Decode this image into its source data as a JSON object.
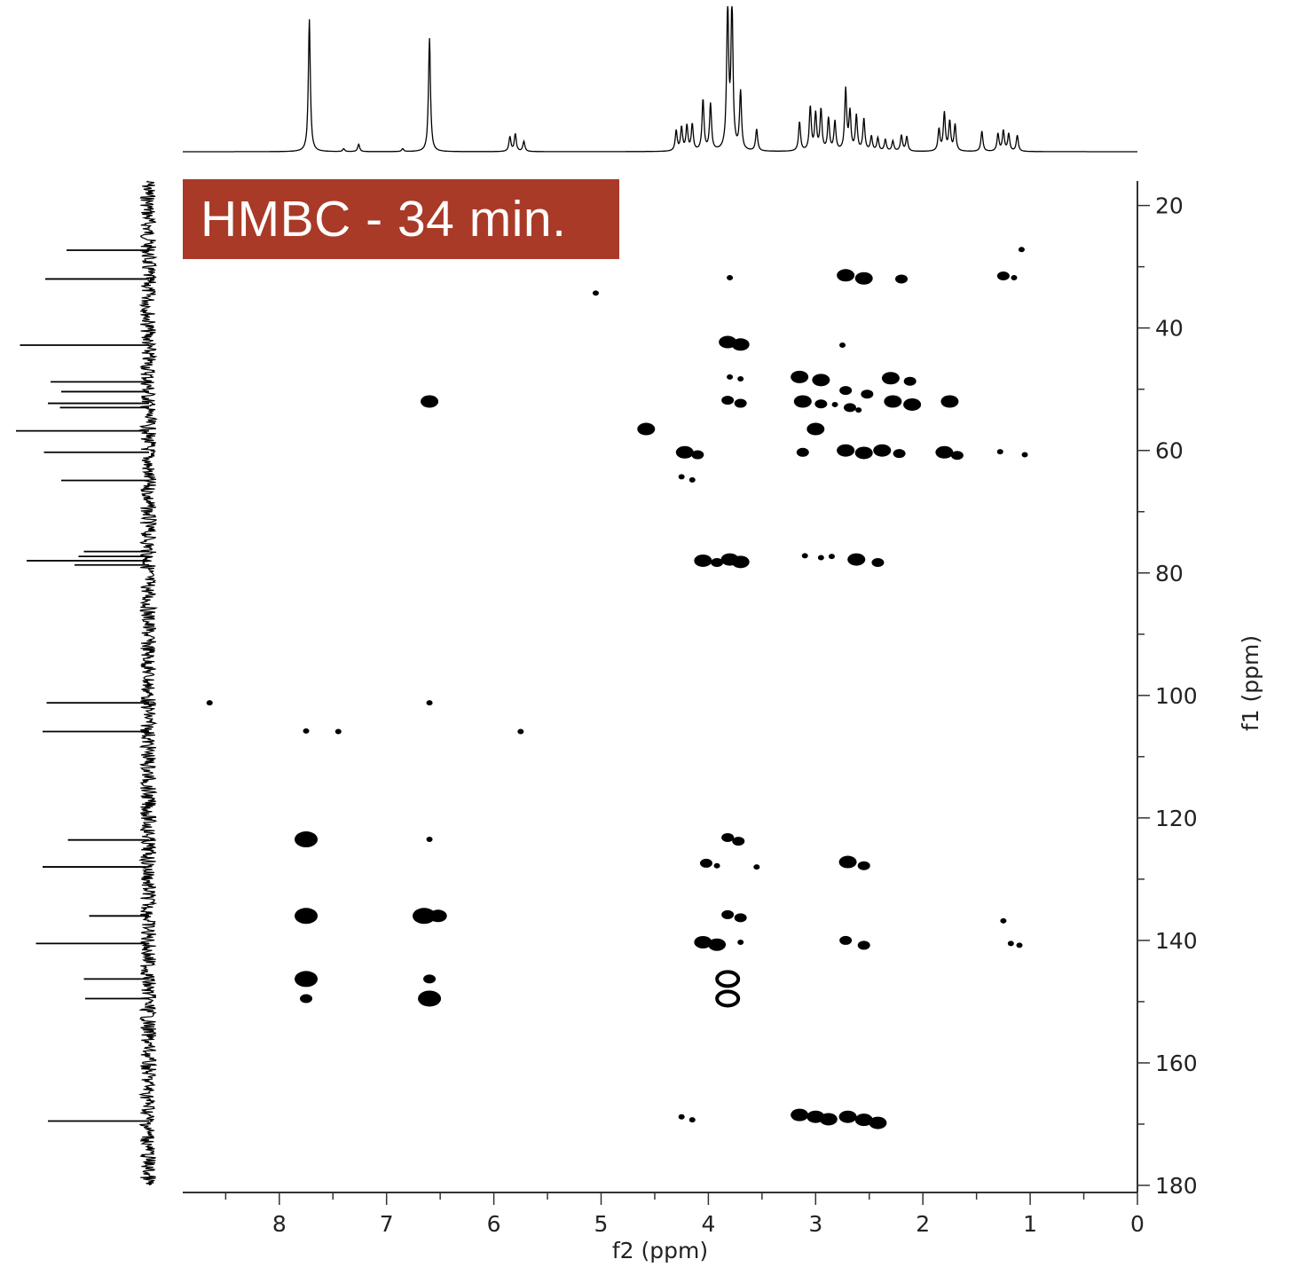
{
  "badge": {
    "label": "HMBC - 34 min.",
    "color": "#a93a27"
  },
  "chart_data": {
    "type": "scatter",
    "subtype": "2D NMR HMBC contour map with 1D projections",
    "title": "HMBC - 34 min.",
    "xlabel": "f2 (ppm)",
    "ylabel": "f1 (ppm)",
    "x_reversed": true,
    "y_reversed": true,
    "xlim": [
      8.9,
      0.0
    ],
    "ylim": [
      16.0,
      180.0
    ],
    "x_ticks": [
      8,
      7,
      6,
      5,
      4,
      3,
      2,
      1,
      0
    ],
    "y_ticks": [
      20,
      40,
      60,
      80,
      100,
      120,
      140,
      160,
      180
    ],
    "colors": {
      "contour": "#000000",
      "axis": "#333333"
    },
    "cross_peaks": [
      {
        "x": 1.08,
        "y": 27.2,
        "s": 0
      },
      {
        "x": 1.25,
        "y": 31.5,
        "s": 1
      },
      {
        "x": 1.15,
        "y": 31.8,
        "s": 0
      },
      {
        "x": 2.72,
        "y": 31.4,
        "s": 2
      },
      {
        "x": 2.55,
        "y": 31.9,
        "s": 2
      },
      {
        "x": 2.2,
        "y": 32.0,
        "s": 1
      },
      {
        "x": 3.8,
        "y": 31.8,
        "s": 0
      },
      {
        "x": 5.05,
        "y": 34.3,
        "s": 0
      },
      {
        "x": 3.82,
        "y": 42.3,
        "s": 2
      },
      {
        "x": 3.7,
        "y": 42.7,
        "s": 2
      },
      {
        "x": 2.75,
        "y": 42.8,
        "s": 0
      },
      {
        "x": 3.15,
        "y": 48.0,
        "s": 2
      },
      {
        "x": 2.95,
        "y": 48.5,
        "s": 2
      },
      {
        "x": 2.3,
        "y": 48.2,
        "s": 2
      },
      {
        "x": 2.12,
        "y": 48.7,
        "s": 1
      },
      {
        "x": 3.8,
        "y": 48.0,
        "s": 0
      },
      {
        "x": 3.7,
        "y": 48.3,
        "s": 0
      },
      {
        "x": 2.72,
        "y": 50.2,
        "s": 1
      },
      {
        "x": 2.52,
        "y": 50.8,
        "s": 1
      },
      {
        "x": 6.6,
        "y": 52.0,
        "s": 2
      },
      {
        "x": 3.82,
        "y": 51.8,
        "s": 1
      },
      {
        "x": 3.7,
        "y": 52.3,
        "s": 1
      },
      {
        "x": 3.12,
        "y": 52.0,
        "s": 2
      },
      {
        "x": 2.95,
        "y": 52.4,
        "s": 1
      },
      {
        "x": 2.82,
        "y": 52.5,
        "s": 0
      },
      {
        "x": 2.68,
        "y": 53.0,
        "s": 1
      },
      {
        "x": 2.28,
        "y": 52.0,
        "s": 2
      },
      {
        "x": 2.1,
        "y": 52.5,
        "s": 2
      },
      {
        "x": 1.75,
        "y": 52.0,
        "s": 2
      },
      {
        "x": 2.6,
        "y": 53.4,
        "s": 0
      },
      {
        "x": 4.58,
        "y": 56.5,
        "s": 2
      },
      {
        "x": 3.0,
        "y": 56.5,
        "s": 2
      },
      {
        "x": 4.22,
        "y": 60.3,
        "s": 2
      },
      {
        "x": 4.1,
        "y": 60.7,
        "s": 1
      },
      {
        "x": 3.12,
        "y": 60.3,
        "s": 1
      },
      {
        "x": 2.72,
        "y": 60.0,
        "s": 2
      },
      {
        "x": 2.55,
        "y": 60.4,
        "s": 2
      },
      {
        "x": 2.38,
        "y": 60.0,
        "s": 2
      },
      {
        "x": 2.22,
        "y": 60.5,
        "s": 1
      },
      {
        "x": 1.8,
        "y": 60.3,
        "s": 2
      },
      {
        "x": 1.68,
        "y": 60.8,
        "s": 1
      },
      {
        "x": 1.28,
        "y": 60.2,
        "s": 0
      },
      {
        "x": 1.05,
        "y": 60.7,
        "s": 0
      },
      {
        "x": 4.25,
        "y": 64.3,
        "s": 0
      },
      {
        "x": 4.15,
        "y": 64.8,
        "s": 0
      },
      {
        "x": 4.05,
        "y": 78.0,
        "s": 2
      },
      {
        "x": 3.92,
        "y": 78.3,
        "s": 1
      },
      {
        "x": 3.8,
        "y": 77.8,
        "s": 2
      },
      {
        "x": 3.7,
        "y": 78.2,
        "s": 2
      },
      {
        "x": 3.1,
        "y": 77.2,
        "s": 0
      },
      {
        "x": 2.95,
        "y": 77.5,
        "s": 0
      },
      {
        "x": 2.85,
        "y": 77.3,
        "s": 0
      },
      {
        "x": 2.62,
        "y": 77.8,
        "s": 2
      },
      {
        "x": 2.42,
        "y": 78.3,
        "s": 1
      },
      {
        "x": 8.65,
        "y": 101.2,
        "s": 0
      },
      {
        "x": 6.6,
        "y": 101.2,
        "s": 0
      },
      {
        "x": 7.75,
        "y": 105.8,
        "s": 0
      },
      {
        "x": 7.45,
        "y": 105.9,
        "s": 0
      },
      {
        "x": 5.75,
        "y": 105.9,
        "s": 0
      },
      {
        "x": 7.75,
        "y": 123.5,
        "s": 3
      },
      {
        "x": 6.6,
        "y": 123.5,
        "s": 0
      },
      {
        "x": 3.82,
        "y": 123.2,
        "s": 1
      },
      {
        "x": 3.72,
        "y": 123.8,
        "s": 1
      },
      {
        "x": 4.02,
        "y": 127.4,
        "s": 1
      },
      {
        "x": 3.92,
        "y": 127.8,
        "s": 0
      },
      {
        "x": 3.55,
        "y": 128.0,
        "s": 0
      },
      {
        "x": 2.7,
        "y": 127.2,
        "s": 2
      },
      {
        "x": 2.55,
        "y": 127.8,
        "s": 1
      },
      {
        "x": 7.75,
        "y": 136.0,
        "s": 3
      },
      {
        "x": 6.65,
        "y": 136.0,
        "s": 3
      },
      {
        "x": 6.52,
        "y": 136.0,
        "s": 2
      },
      {
        "x": 3.82,
        "y": 135.8,
        "s": 1
      },
      {
        "x": 3.7,
        "y": 136.3,
        "s": 1
      },
      {
        "x": 4.05,
        "y": 140.3,
        "s": 2
      },
      {
        "x": 3.92,
        "y": 140.7,
        "s": 2
      },
      {
        "x": 3.7,
        "y": 140.3,
        "s": 0
      },
      {
        "x": 2.72,
        "y": 140.0,
        "s": 1
      },
      {
        "x": 2.55,
        "y": 140.8,
        "s": 1
      },
      {
        "x": 1.25,
        "y": 136.8,
        "s": 0
      },
      {
        "x": 1.18,
        "y": 140.5,
        "s": 0
      },
      {
        "x": 1.1,
        "y": 140.8,
        "s": 0
      },
      {
        "x": 7.75,
        "y": 146.3,
        "s": 3
      },
      {
        "x": 6.6,
        "y": 146.3,
        "s": 1
      },
      {
        "x": 7.75,
        "y": 149.5,
        "s": 1
      },
      {
        "x": 6.6,
        "y": 149.5,
        "s": 3
      },
      {
        "x": 3.82,
        "y": 146.3,
        "s": 4
      },
      {
        "x": 3.82,
        "y": 149.5,
        "s": 4
      },
      {
        "x": 4.25,
        "y": 168.8,
        "s": 0
      },
      {
        "x": 4.15,
        "y": 169.3,
        "s": 0
      },
      {
        "x": 3.15,
        "y": 168.5,
        "s": 2
      },
      {
        "x": 3.0,
        "y": 168.8,
        "s": 2
      },
      {
        "x": 2.88,
        "y": 169.2,
        "s": 2
      },
      {
        "x": 2.7,
        "y": 168.8,
        "s": 2
      },
      {
        "x": 2.55,
        "y": 169.3,
        "s": 2
      },
      {
        "x": 2.42,
        "y": 169.8,
        "s": 2
      }
    ],
    "top_projection_peaks": [
      {
        "x": 7.72,
        "h": 0.91
      },
      {
        "x": 7.4,
        "h": 0.02
      },
      {
        "x": 7.26,
        "h": 0.05
      },
      {
        "x": 6.85,
        "h": 0.02
      },
      {
        "x": 6.6,
        "h": 0.78
      },
      {
        "x": 5.85,
        "h": 0.1
      },
      {
        "x": 5.8,
        "h": 0.12
      },
      {
        "x": 5.72,
        "h": 0.07
      },
      {
        "x": 4.3,
        "h": 0.14
      },
      {
        "x": 4.25,
        "h": 0.16
      },
      {
        "x": 4.2,
        "h": 0.17
      },
      {
        "x": 4.15,
        "h": 0.18
      },
      {
        "x": 4.05,
        "h": 0.35
      },
      {
        "x": 3.98,
        "h": 0.32
      },
      {
        "x": 3.82,
        "h": 1.0
      },
      {
        "x": 3.78,
        "h": 1.0
      },
      {
        "x": 3.7,
        "h": 0.4
      },
      {
        "x": 3.55,
        "h": 0.15
      },
      {
        "x": 3.15,
        "h": 0.2
      },
      {
        "x": 3.05,
        "h": 0.3
      },
      {
        "x": 3.0,
        "h": 0.25
      },
      {
        "x": 2.95,
        "h": 0.28
      },
      {
        "x": 2.88,
        "h": 0.22
      },
      {
        "x": 2.82,
        "h": 0.2
      },
      {
        "x": 2.72,
        "h": 0.42
      },
      {
        "x": 2.68,
        "h": 0.26
      },
      {
        "x": 2.62,
        "h": 0.24
      },
      {
        "x": 2.55,
        "h": 0.22
      },
      {
        "x": 2.48,
        "h": 0.1
      },
      {
        "x": 2.42,
        "h": 0.09
      },
      {
        "x": 2.35,
        "h": 0.08
      },
      {
        "x": 2.28,
        "h": 0.07
      },
      {
        "x": 2.2,
        "h": 0.11
      },
      {
        "x": 2.15,
        "h": 0.1
      },
      {
        "x": 1.85,
        "h": 0.15
      },
      {
        "x": 1.8,
        "h": 0.26
      },
      {
        "x": 1.75,
        "h": 0.2
      },
      {
        "x": 1.7,
        "h": 0.18
      },
      {
        "x": 1.45,
        "h": 0.14
      },
      {
        "x": 1.3,
        "h": 0.12
      },
      {
        "x": 1.25,
        "h": 0.14
      },
      {
        "x": 1.2,
        "h": 0.12
      },
      {
        "x": 1.12,
        "h": 0.11
      }
    ],
    "left_projection_peaks": [
      {
        "y": 27.3,
        "h": 0.62
      },
      {
        "y": 32.0,
        "h": 0.78
      },
      {
        "y": 42.8,
        "h": 0.97
      },
      {
        "y": 48.8,
        "h": 0.74
      },
      {
        "y": 50.4,
        "h": 0.66
      },
      {
        "y": 52.3,
        "h": 0.76
      },
      {
        "y": 53.0,
        "h": 0.67
      },
      {
        "y": 56.8,
        "h": 1.0
      },
      {
        "y": 60.3,
        "h": 0.79
      },
      {
        "y": 64.9,
        "h": 0.66
      },
      {
        "y": 76.5,
        "h": 0.49
      },
      {
        "y": 77.3,
        "h": 0.53
      },
      {
        "y": 78.0,
        "h": 0.92
      },
      {
        "y": 78.7,
        "h": 0.56
      },
      {
        "y": 101.2,
        "h": 0.77
      },
      {
        "y": 105.9,
        "h": 0.8
      },
      {
        "y": 123.6,
        "h": 0.61
      },
      {
        "y": 128.0,
        "h": 0.8
      },
      {
        "y": 136.0,
        "h": 0.45
      },
      {
        "y": 140.5,
        "h": 0.85
      },
      {
        "y": 146.3,
        "h": 0.49
      },
      {
        "y": 149.5,
        "h": 0.48
      },
      {
        "y": 169.5,
        "h": 0.76
      }
    ]
  }
}
